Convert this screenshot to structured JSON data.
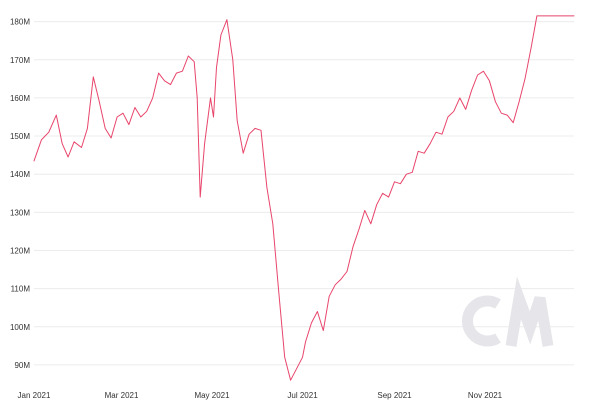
{
  "chart_data": {
    "type": "line",
    "title": "",
    "xlabel": "",
    "ylabel": "",
    "x_range": [
      "2021-01-01",
      "2021-12-31"
    ],
    "ylim": [
      85000000,
      182000000
    ],
    "grid": "horizontal",
    "legend": "none",
    "series_color": "#e8456b",
    "grid_color": "#ececec",
    "watermark_color": "#e6e6ea",
    "y_ticks": [
      {
        "value": 90000000,
        "label": "90M"
      },
      {
        "value": 100000000,
        "label": "100M"
      },
      {
        "value": 110000000,
        "label": "110M"
      },
      {
        "value": 120000000,
        "label": "120M"
      },
      {
        "value": 130000000,
        "label": "130M"
      },
      {
        "value": 140000000,
        "label": "140M"
      },
      {
        "value": 150000000,
        "label": "150M"
      },
      {
        "value": 160000000,
        "label": "160M"
      },
      {
        "value": 170000000,
        "label": "170M"
      },
      {
        "value": 180000000,
        "label": "180M"
      }
    ],
    "x_ticks": [
      {
        "value": "2021-01-01",
        "label": "Jan 2021"
      },
      {
        "value": "2021-03-01",
        "label": "Mar 2021"
      },
      {
        "value": "2021-05-01",
        "label": "May 2021"
      },
      {
        "value": "2021-07-01",
        "label": "Jul 2021"
      },
      {
        "value": "2021-09-01",
        "label": "Sep 2021"
      },
      {
        "value": "2021-11-01",
        "label": "Nov 2021"
      }
    ],
    "series": [
      {
        "x": [
          "2021-01-01",
          "2021-01-06",
          "2021-01-11",
          "2021-01-16",
          "2021-01-20",
          "2021-01-24",
          "2021-01-28",
          "2021-02-02",
          "2021-02-06",
          "2021-02-10",
          "2021-02-14",
          "2021-02-18",
          "2021-02-22",
          "2021-02-26",
          "2021-03-02",
          "2021-03-06",
          "2021-03-10",
          "2021-03-14",
          "2021-03-18",
          "2021-03-22",
          "2021-03-26",
          "2021-03-30",
          "2021-04-03",
          "2021-04-07",
          "2021-04-11",
          "2021-04-15",
          "2021-04-19",
          "2021-04-21",
          "2021-04-23",
          "2021-04-26",
          "2021-04-30",
          "2021-05-02",
          "2021-05-04",
          "2021-05-07",
          "2021-05-11",
          "2021-05-15",
          "2021-05-18",
          "2021-05-22",
          "2021-05-26",
          "2021-05-30",
          "2021-06-03",
          "2021-06-07",
          "2021-06-11",
          "2021-06-15",
          "2021-06-19",
          "2021-06-23",
          "2021-06-27",
          "2021-07-01",
          "2021-07-03",
          "2021-07-07",
          "2021-07-11",
          "2021-07-15",
          "2021-07-19",
          "2021-07-23",
          "2021-07-27",
          "2021-07-31",
          "2021-08-04",
          "2021-08-08",
          "2021-08-12",
          "2021-08-16",
          "2021-08-20",
          "2021-08-24",
          "2021-08-28",
          "2021-09-01",
          "2021-09-05",
          "2021-09-09",
          "2021-09-13",
          "2021-09-17",
          "2021-09-21",
          "2021-09-25",
          "2021-09-29",
          "2021-10-03",
          "2021-10-07",
          "2021-10-11",
          "2021-10-15",
          "2021-10-19",
          "2021-10-23",
          "2021-10-27",
          "2021-10-31",
          "2021-11-04",
          "2021-11-08",
          "2021-11-12",
          "2021-11-16",
          "2021-11-20",
          "2021-11-24",
          "2021-11-28",
          "2021-12-02",
          "2021-12-06",
          "2021-12-10",
          "2021-12-14",
          "2021-12-18",
          "2021-12-22",
          "2021-12-26",
          "2021-12-31"
        ],
        "values": [
          143500000,
          149000000,
          151000000,
          155500000,
          148000000,
          144500000,
          148500000,
          147000000,
          152000000,
          165500000,
          159000000,
          152000000,
          149500000,
          155000000,
          156000000,
          153000000,
          157500000,
          155000000,
          156500000,
          160000000,
          166500000,
          164500000,
          163500000,
          166500000,
          167000000,
          171000000,
          169500000,
          160000000,
          134000000,
          148000000,
          160000000,
          155000000,
          168000000,
          176500000,
          180500000,
          170000000,
          154000000,
          145500000,
          150500000,
          152000000,
          151500000,
          136500000,
          127000000,
          109000000,
          92000000,
          86000000,
          89000000,
          92000000,
          96000000,
          101000000,
          104000000,
          99000000,
          108000000,
          111000000,
          112500000,
          114500000,
          121000000,
          125500000,
          130500000,
          127000000,
          132000000,
          135000000,
          134000000,
          138000000,
          137500000,
          140000000,
          140500000,
          146000000,
          145500000,
          148000000,
          151000000,
          150500000,
          155000000,
          156500000,
          160000000,
          157000000,
          162000000,
          166000000,
          167000000,
          164500000,
          159000000,
          156000000,
          155500000,
          153500000,
          159000000,
          165000000,
          173000000,
          181500000,
          181500000,
          181500000,
          181500000,
          181500000,
          181500000,
          181500000
        ]
      }
    ]
  }
}
